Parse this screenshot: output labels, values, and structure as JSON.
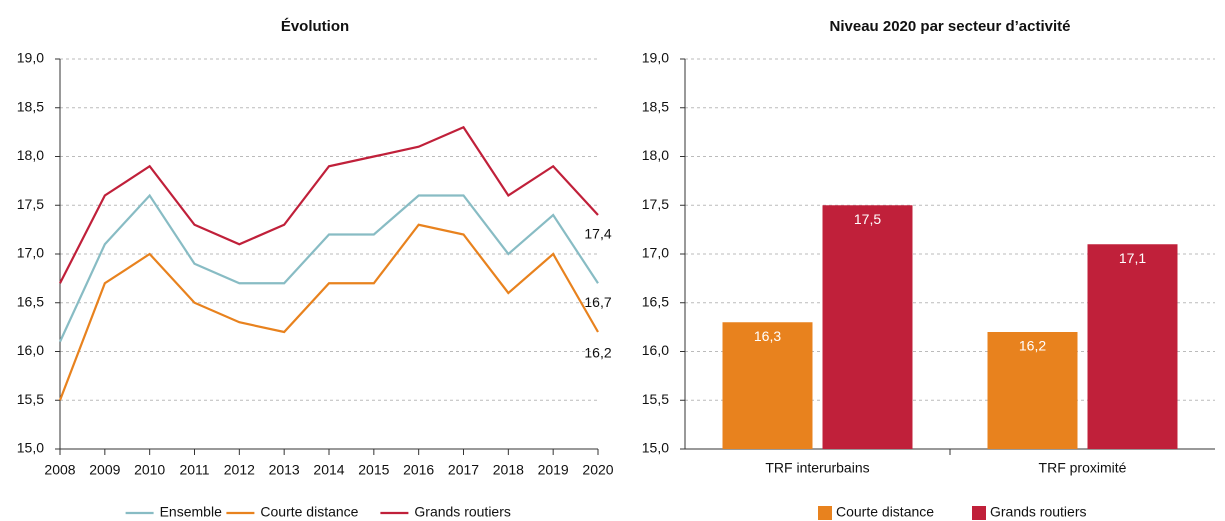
{
  "chart_data": [
    {
      "type": "line",
      "title": "Évolution",
      "categories": [
        "2008",
        "2009",
        "2010",
        "2011",
        "2012",
        "2013",
        "2014",
        "2015",
        "2016",
        "2017",
        "2018",
        "2019",
        "2020"
      ],
      "series": [
        {
          "name": "Ensemble",
          "color": "#88bcc4",
          "values": [
            16.1,
            17.1,
            17.6,
            16.9,
            16.7,
            16.7,
            17.2,
            17.2,
            17.6,
            17.6,
            17.0,
            17.4,
            16.7
          ],
          "value_labels": [
            null,
            null,
            null,
            null,
            null,
            null,
            null,
            null,
            null,
            null,
            null,
            null,
            "16,7"
          ]
        },
        {
          "name": "Courte distance",
          "color": "#e8821e",
          "values": [
            15.5,
            16.7,
            17.0,
            16.5,
            16.3,
            16.2,
            16.7,
            16.7,
            17.3,
            17.2,
            16.6,
            17.0,
            16.2
          ],
          "value_labels": [
            null,
            null,
            null,
            null,
            null,
            null,
            null,
            null,
            null,
            null,
            null,
            null,
            "16,2"
          ]
        },
        {
          "name": "Grands routiers",
          "color": "#c0203a",
          "values": [
            16.7,
            17.6,
            17.9,
            17.3,
            17.1,
            17.3,
            17.9,
            18.0,
            18.1,
            18.3,
            17.6,
            17.9,
            17.4
          ],
          "value_labels": [
            null,
            null,
            null,
            null,
            null,
            null,
            null,
            null,
            null,
            null,
            null,
            null,
            "17,4"
          ]
        }
      ],
      "ylim": [
        15,
        19
      ],
      "yticks": [
        {
          "value": 15,
          "label": "15,0"
        },
        {
          "value": 15.5,
          "label": "15,5"
        },
        {
          "value": 16,
          "label": "16,0"
        },
        {
          "value": 16.5,
          "label": "16,5"
        },
        {
          "value": 17,
          "label": "17,0"
        },
        {
          "value": 17.5,
          "label": "17,5"
        },
        {
          "value": 18,
          "label": "18,0"
        },
        {
          "value": 18.5,
          "label": "18,5"
        },
        {
          "value": 19,
          "label": "19,0"
        }
      ],
      "grid": true,
      "legend": "bottom"
    },
    {
      "type": "bar",
      "title": "Niveau 2020 par secteur d’activité",
      "categories": [
        "TRF interurbains",
        "TRF proximité"
      ],
      "series": [
        {
          "name": "Courte distance",
          "color": "#e8821e",
          "values": [
            16.3,
            16.2
          ],
          "value_labels": [
            "16,3",
            "16,2"
          ]
        },
        {
          "name": "Grands routiers",
          "color": "#c0203a",
          "values": [
            17.5,
            17.1
          ],
          "value_labels": [
            "17,5",
            "17,1"
          ]
        }
      ],
      "ylim": [
        15,
        19
      ],
      "yticks": [
        {
          "value": 15,
          "label": "15,0"
        },
        {
          "value": 15.5,
          "label": "15,5"
        },
        {
          "value": 16,
          "label": "16,0"
        },
        {
          "value": 16.5,
          "label": "16,5"
        },
        {
          "value": 17,
          "label": "17,0"
        },
        {
          "value": 17.5,
          "label": "17,5"
        },
        {
          "value": 18,
          "label": "18,0"
        },
        {
          "value": 18.5,
          "label": "18,5"
        },
        {
          "value": 19,
          "label": "19,0"
        }
      ],
      "grid": true,
      "legend": "bottom"
    }
  ]
}
